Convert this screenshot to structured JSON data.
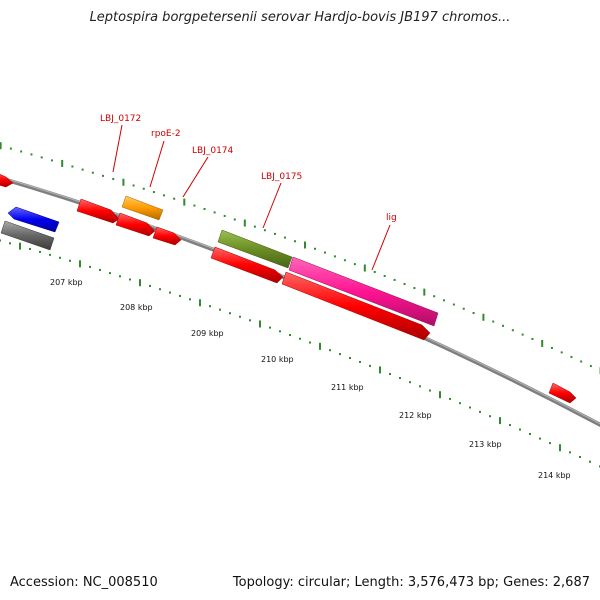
{
  "header": {
    "title": "Leptospira borgpetersenii serovar Hardjo-bovis JB197 chromos..."
  },
  "footer": {
    "accession": "Accession: NC_008510",
    "stats": "Topology: circular; Length: 3,576,473 bp; Genes: 2,687"
  },
  "map": {
    "ticks": [
      {
        "label": "207 kbp"
      },
      {
        "label": "208 kbp"
      },
      {
        "label": "209 kbp"
      },
      {
        "label": "210 kbp"
      },
      {
        "label": "211 kbp"
      },
      {
        "label": "212 kbp"
      },
      {
        "label": "213 kbp"
      },
      {
        "label": "214 kbp"
      }
    ],
    "gene_labels": [
      {
        "label": "LBJ_0172"
      },
      {
        "label": "rpoE-2"
      },
      {
        "label": "LBJ_0174"
      },
      {
        "label": "LBJ_0175"
      },
      {
        "label": "lig"
      }
    ],
    "colors": {
      "red": "#ff0000",
      "orange": "#ff9900",
      "olive": "#6b8e23",
      "pink": "#ff1493",
      "blue": "#0000ee",
      "gray": "#666666",
      "tick": "#2e8b2e",
      "backbone": "#7f7f7f"
    }
  }
}
